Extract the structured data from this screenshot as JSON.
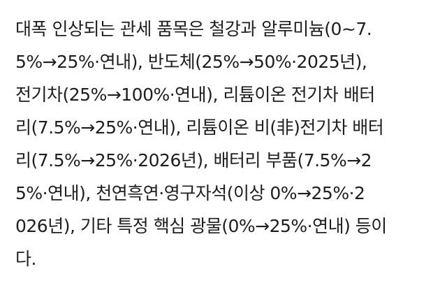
{
  "article": {
    "lines": [
      "대폭 인상되는 관세 품목은 철강과 알루미늄(0~7.",
      "5%→25%·연내), 반도체(25%→50%·2025년),",
      "전기차(25%→100%·연내), 리튬이온 전기차 배터",
      "리(7.5%→25%·연내), 리튬이온 비(非)전기차 배터",
      "리(7.5%→25%·2026년), 배터리 부품(7.5%→2",
      "5%·연내), 천연흑연·영구자석(이상 0%→25%·2",
      "026년), 기타 특정 핵심 광물(0%→25%·연내) 등이",
      "다."
    ]
  }
}
